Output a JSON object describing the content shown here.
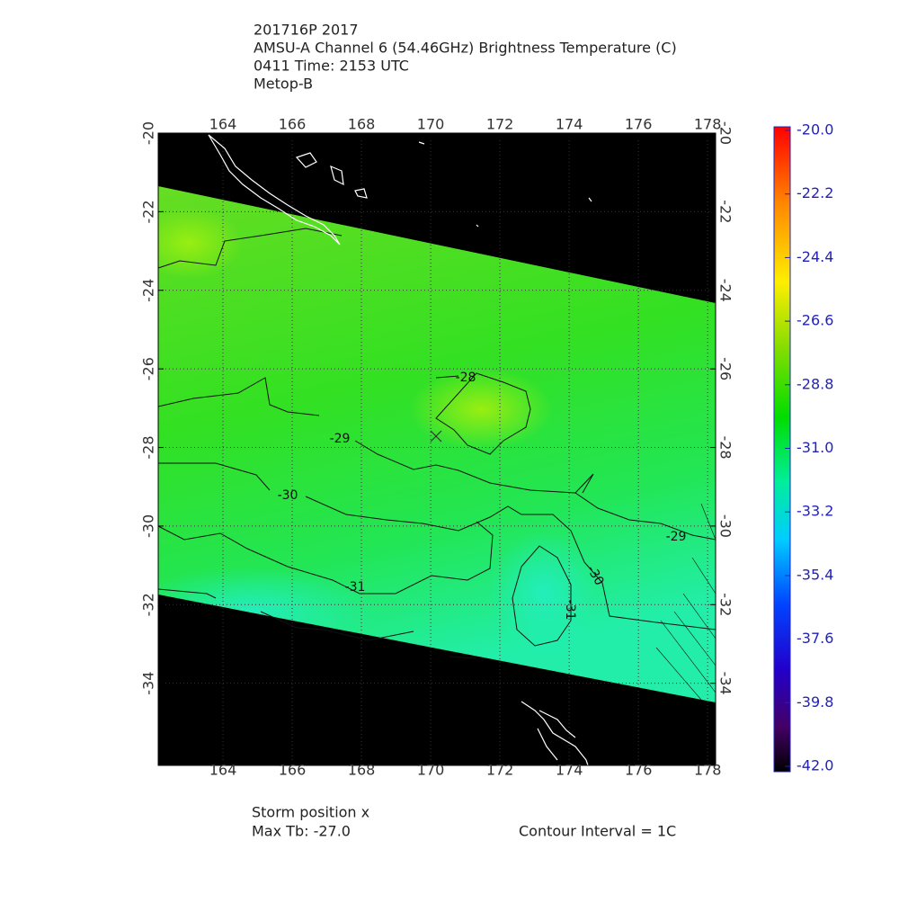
{
  "header": {
    "lines": [
      "201716P 2017",
      "AMSU-A Channel 6 (54.46GHz) Brightness Temperature (C)",
      "0411 Time: 2153 UTC",
      "Metop-B"
    ]
  },
  "map": {
    "lon_range": [
      162.13,
      178.23
    ],
    "lat_range": [
      -20,
      -36.09
    ],
    "lon_ticks": [
      164,
      166,
      168,
      170,
      172,
      174,
      176,
      178
    ],
    "lat_ticks": [
      -20,
      -22,
      -24,
      -26,
      -28,
      -30,
      -32,
      -34
    ],
    "grid": true,
    "contour_labels": [
      "-28",
      "-29",
      "-30",
      "-31",
      "-29",
      "-30",
      "-31"
    ]
  },
  "colorbar": {
    "range": [
      -42,
      -20
    ],
    "ticks": [
      {
        "value": -20,
        "label": "-20.0"
      },
      {
        "value": -22.2,
        "label": "-22.2"
      },
      {
        "value": -24.4,
        "label": "-24.4"
      },
      {
        "value": -26.6,
        "label": "-26.6"
      },
      {
        "value": -28.8,
        "label": "-28.8"
      },
      {
        "value": -31,
        "label": "-31.0"
      },
      {
        "value": -33.2,
        "label": "-33.2"
      },
      {
        "value": -35.4,
        "label": "-35.4"
      },
      {
        "value": -37.6,
        "label": "-37.6"
      },
      {
        "value": -39.8,
        "label": "-39.8"
      },
      {
        "value": -42,
        "label": "-42.0"
      }
    ]
  },
  "footer": {
    "storm": "Storm position x",
    "max_tb": "Max Tb: -27.0",
    "contour_interval": "Contour Interval = 1C"
  }
}
